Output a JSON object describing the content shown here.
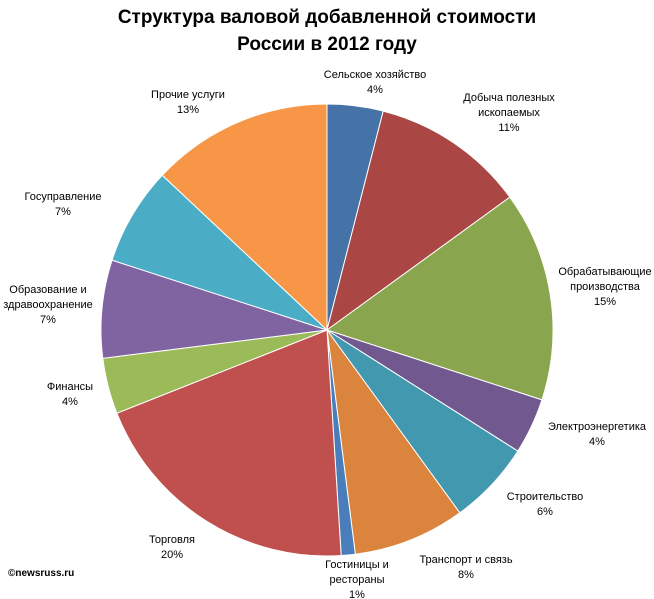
{
  "chart_data": {
    "type": "pie",
    "title_line1": "Структура валовой добавленной стоимости",
    "title_line2": "России в 2012 году",
    "slices": [
      {
        "label": [
          "Сельское хозяйство"
        ],
        "value": 4,
        "pct": "4%",
        "color": "#4572A7"
      },
      {
        "label": [
          "Добыча полезных",
          "ископаемых"
        ],
        "value": 11,
        "pct": "11%",
        "color": "#AA4643"
      },
      {
        "label": [
          "Обрабатывающие",
          "производства"
        ],
        "value": 15,
        "pct": "15%",
        "color": "#89A54E"
      },
      {
        "label": [
          "Электроэнергетика"
        ],
        "value": 4,
        "pct": "4%",
        "color": "#71588F"
      },
      {
        "label": [
          "Строительство"
        ],
        "value": 6,
        "pct": "6%",
        "color": "#4198AF"
      },
      {
        "label": [
          "Транспорт и связь"
        ],
        "value": 8,
        "pct": "8%",
        "color": "#DB843D"
      },
      {
        "label": [
          "Гостиницы и",
          "рестораны"
        ],
        "value": 1,
        "pct": "1%",
        "color": "#4A7EBB"
      },
      {
        "label": [
          "Торговля"
        ],
        "value": 20,
        "pct": "20%",
        "color": "#C0504D"
      },
      {
        "label": [
          "Финансы"
        ],
        "value": 4,
        "pct": "4%",
        "color": "#9BBB59"
      },
      {
        "label": [
          "Образование и",
          "здравоохранение"
        ],
        "value": 7,
        "pct": "7%",
        "color": "#8064A2"
      },
      {
        "label": [
          "Госуправление"
        ],
        "value": 7,
        "pct": "7%",
        "color": "#4BACC6"
      },
      {
        "label": [
          "Прочие услуги"
        ],
        "value": 13,
        "pct": "13%",
        "color": "#F79646"
      }
    ]
  },
  "credit": "©newsruss.ru"
}
